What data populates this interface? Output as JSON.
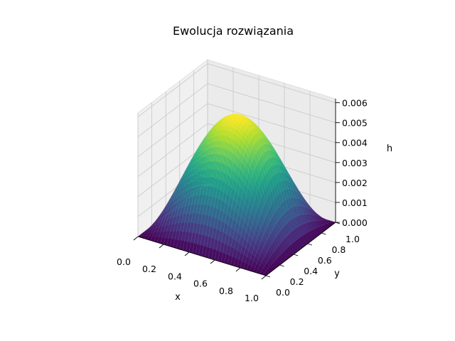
{
  "chart_data": {
    "type": "surface3d",
    "title": "Ewolucja rozwiązania",
    "xlabel": "x",
    "ylabel": "y",
    "zlabel": "h",
    "x_ticks": [
      "0.0",
      "0.2",
      "0.4",
      "0.6",
      "0.8",
      "1.0"
    ],
    "y_ticks": [
      "0.0",
      "0.2",
      "0.4",
      "0.6",
      "0.8",
      "1.0"
    ],
    "z_ticks": [
      "0.000",
      "0.001",
      "0.002",
      "0.003",
      "0.004",
      "0.005",
      "0.006"
    ],
    "xlim": [
      0,
      1
    ],
    "ylim": [
      0,
      1
    ],
    "zlim": [
      0,
      0.0062
    ],
    "surface": {
      "function": "h = A * sin(pi*x) * sin(pi*y)",
      "peak_value": 0.0057,
      "peak_at": [
        0.5,
        0.5
      ],
      "boundary_value": 0,
      "grid_points": 41
    },
    "colormap": "viridis",
    "grid": true
  }
}
